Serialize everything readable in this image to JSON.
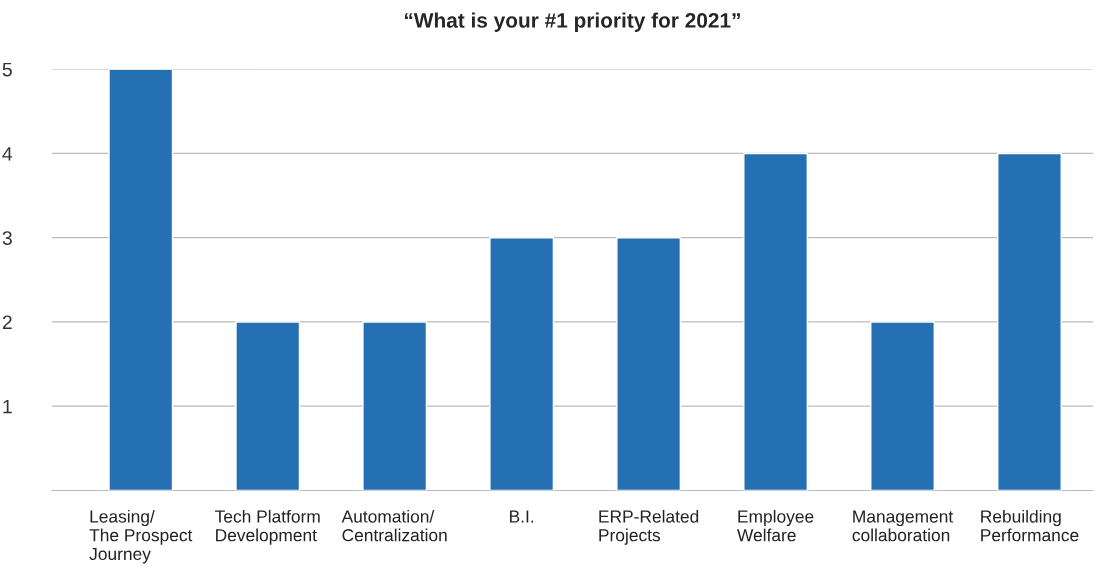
{
  "chart_data": {
    "type": "bar",
    "title": "“What is your #1 priority for 2021”",
    "categories": [
      "Leasing/\nThe Prospect\nJourney",
      "Tech Platform\nDevelopment",
      "Automation/\nCentralization",
      "B.I.",
      "ERP-Related\nProjects",
      "Employee\nWelfare",
      "Management\ncollaboration",
      "Rebuilding\nPerformance"
    ],
    "values": [
      5,
      2,
      2,
      3,
      3,
      4,
      2,
      4
    ],
    "color": "#2470b3",
    "ylim": [
      0,
      5
    ],
    "yticks": [
      1,
      2,
      3,
      4,
      5
    ],
    "grid": "y",
    "legend": false
  }
}
